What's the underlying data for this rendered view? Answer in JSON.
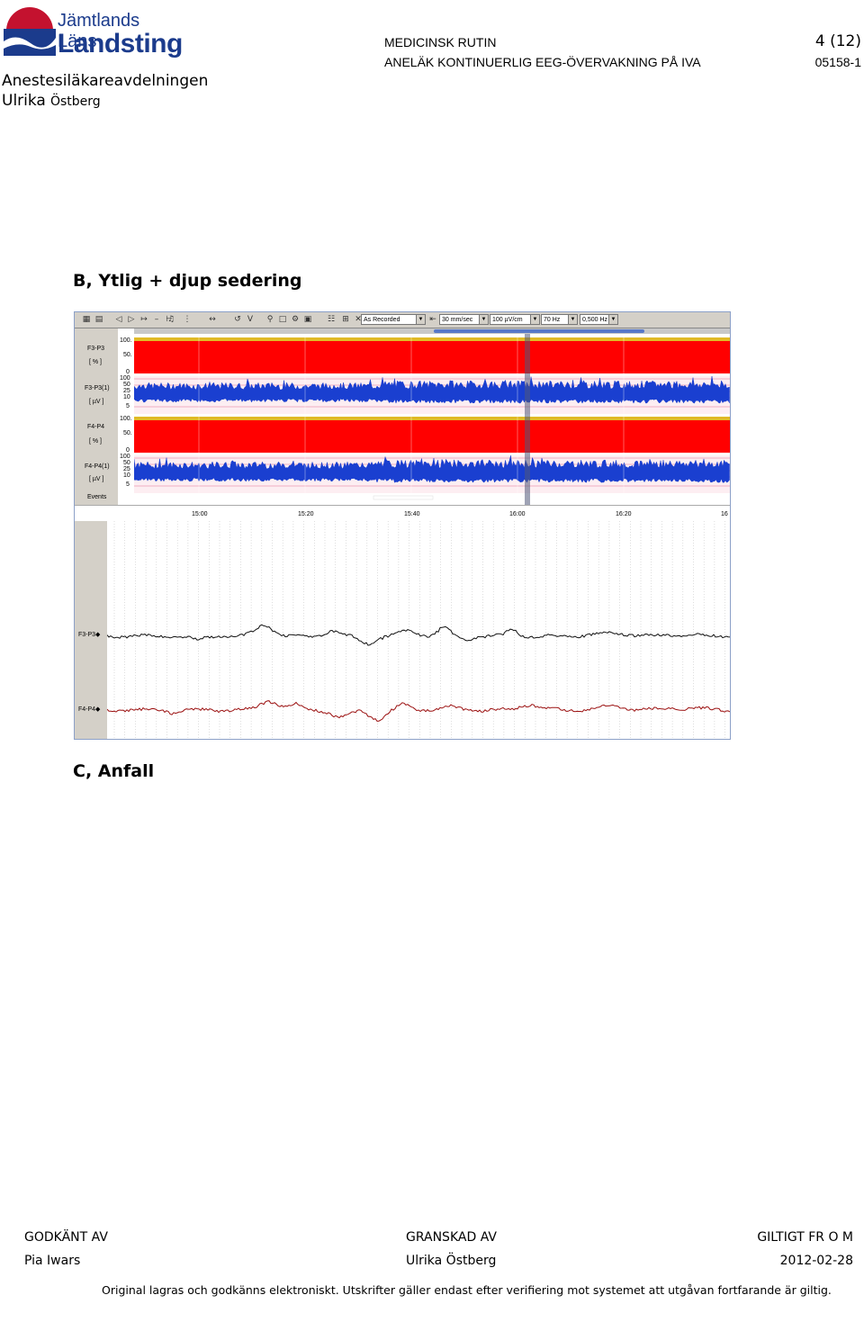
{
  "header": {
    "logo_line1": "Jämtlands Läns",
    "logo_line2": "Landsting",
    "department": "Anestesiläkareavdelningen",
    "author_first": "Ulrika",
    "author_last": "Östberg",
    "doc_type": "MEDICINSK RUTIN",
    "doc_title": "ANELÄK KONTINUERLIG EEG-ÖVERVAKNING PÅ IVA",
    "page": "4 (12)",
    "doc_number": "05158-1"
  },
  "section_b_title": "B, Ytlig + djup sedering",
  "section_c_title": "C, Anfall",
  "eeg_screenshot": {
    "toolbar": {
      "recording_select": "As Recorded",
      "speed_select": "30 mm/sec",
      "sensitivity_select": "100 µV/cm",
      "lowpass_select": "70 Hz",
      "highpass_select": "0,500 Hz"
    },
    "channels": [
      {
        "name": "F3-P3",
        "unit": "[ % ]"
      },
      {
        "name": "F3-P3(1)",
        "unit": "[ µV ]"
      },
      {
        "name": "F4-P4",
        "unit": "[ % ]"
      },
      {
        "name": "F4-P4(1)",
        "unit": "[ µV ]"
      }
    ],
    "events_label": "Events",
    "pct_scale": [
      "100.",
      "50.",
      "0"
    ],
    "uv_scale": [
      "100",
      "50",
      "25",
      "10",
      "5"
    ],
    "time_ticks": [
      "15:00",
      "15:20",
      "15:40",
      "16:00",
      "16:20",
      "16"
    ],
    "raw_channels": [
      "F3-P3◆",
      "F4-P4◆"
    ],
    "colors": {
      "trend": "#ff0000",
      "amplitude": "#1a3fd0",
      "border": "#ffff00",
      "raw_f4": "#9b1010"
    }
  },
  "footer": {
    "approved_label": "GODKÄNT AV",
    "approved_by": "Pia Iwars",
    "reviewed_label": "GRANSKAD AV",
    "reviewed_by": "Ulrika Östberg",
    "valid_label": "GILTIGT FR O M",
    "valid_date": "2012-02-28",
    "note": "Original lagras och godkänns elektroniskt. Utskrifter gäller endast efter verifiering mot systemet att utgåvan fortfarande är giltig."
  }
}
